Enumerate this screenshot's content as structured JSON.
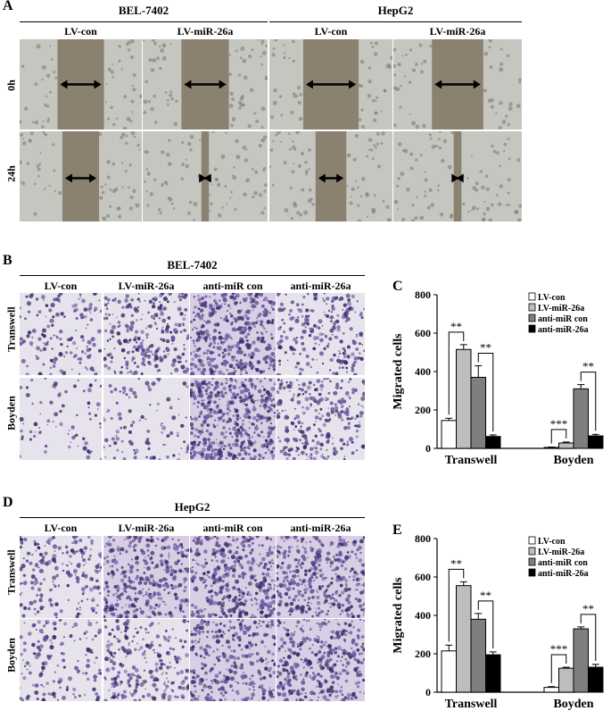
{
  "panel_a": {
    "letter": "A",
    "groups": [
      "BEL-7402",
      "HepG2"
    ],
    "columns": [
      "LV-con",
      "LV-miR-26a",
      "LV-con",
      "LV-miR-26a"
    ],
    "rows": [
      "0h",
      "24h"
    ]
  },
  "panel_b": {
    "letter": "B",
    "group": "BEL-7402",
    "columns": [
      "LV-con",
      "LV-miR-26a",
      "anti-miR con",
      "anti-miR-26a"
    ],
    "rows": [
      "Transwell",
      "Boyden"
    ]
  },
  "panel_d": {
    "letter": "D",
    "group": "HepG2",
    "columns": [
      "LV-con",
      "LV-miR-26a",
      "anti-miR con",
      "anti-miR-26a"
    ],
    "rows": [
      "Transwell",
      "Boyden"
    ]
  },
  "colors": {
    "gap": "#8a8170",
    "cells": "#c6c6c0",
    "stain_light": "#e7e3ec",
    "stain_dark": "#3a2c6b",
    "bar_fills": [
      "#ffffff",
      "#bdbdbd",
      "#7f7f7f",
      "#000000"
    ]
  },
  "chart_data": [
    {
      "type": "bar",
      "panel_letter": "C",
      "ylabel": "Migrated cells",
      "ylim": [
        0,
        800
      ],
      "yticks": [
        "0",
        "200",
        "400",
        "600",
        "800"
      ],
      "categories": [
        "Transwell",
        "Boyden"
      ],
      "series": [
        {
          "name": "LV-con",
          "values": [
            145,
            5
          ],
          "errors": [
            12,
            2
          ]
        },
        {
          "name": "LV-miR-26a",
          "values": [
            515,
            28
          ],
          "errors": [
            25,
            5
          ]
        },
        {
          "name": "anti-miR con",
          "values": [
            370,
            310
          ],
          "errors": [
            60,
            22
          ]
        },
        {
          "name": "anti-miR-26a",
          "values": [
            62,
            65
          ],
          "errors": [
            8,
            8
          ]
        }
      ],
      "significance": [
        {
          "label": "**",
          "category": 0,
          "from": 0,
          "to": 1
        },
        {
          "label": "**",
          "category": 0,
          "from": 2,
          "to": 3
        },
        {
          "label": "***",
          "category": 1,
          "from": 0,
          "to": 1
        },
        {
          "label": "**",
          "category": 1,
          "from": 2,
          "to": 3
        }
      ],
      "legend_position": "top-right"
    },
    {
      "type": "bar",
      "panel_letter": "E",
      "ylabel": "Migrated cells",
      "ylim": [
        0,
        800
      ],
      "yticks": [
        "0",
        "200",
        "400",
        "600",
        "800"
      ],
      "categories": [
        "Transwell",
        "Boyden"
      ],
      "series": [
        {
          "name": "LV-con",
          "values": [
            215,
            25
          ],
          "errors": [
            30,
            4
          ]
        },
        {
          "name": "LV-miR-26a",
          "values": [
            555,
            125
          ],
          "errors": [
            20,
            5
          ]
        },
        {
          "name": "anti-miR con",
          "values": [
            380,
            330
          ],
          "errors": [
            30,
            10
          ]
        },
        {
          "name": "anti-miR-26a",
          "values": [
            195,
            130
          ],
          "errors": [
            15,
            15
          ]
        }
      ],
      "significance": [
        {
          "label": "**",
          "category": 0,
          "from": 0,
          "to": 1
        },
        {
          "label": "**",
          "category": 0,
          "from": 2,
          "to": 3
        },
        {
          "label": "***",
          "category": 1,
          "from": 0,
          "to": 1
        },
        {
          "label": "**",
          "category": 1,
          "from": 2,
          "to": 3
        }
      ],
      "legend_position": "top-right"
    }
  ]
}
